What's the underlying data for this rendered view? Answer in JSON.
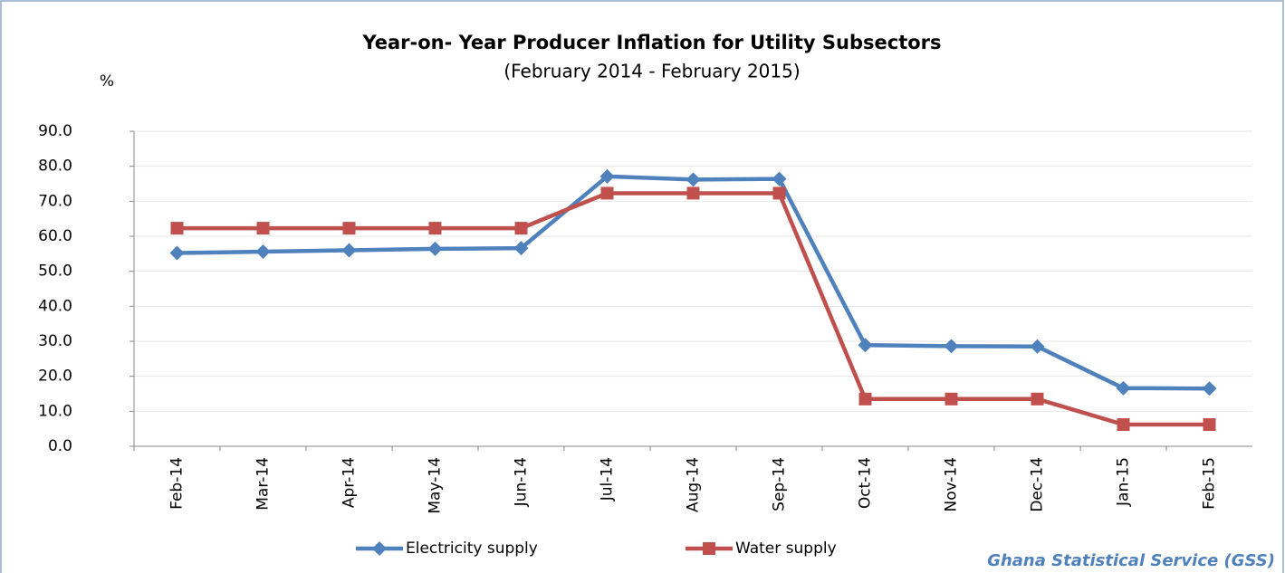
{
  "chart_data": {
    "type": "line",
    "title": "Year-on- Year Producer Inflation for Utility Subsectors",
    "subtitle": "(February 2014 - February 2015)",
    "y_label": "%",
    "source": "Ghana Statistical Service (GSS)",
    "categories": [
      "Feb-14",
      "Mar-14",
      "Apr-14",
      "May-14",
      "Jun-14",
      "Jul-14",
      "Aug-14",
      "Sep-14",
      "Oct-14",
      "Nov-14",
      "Dec-14",
      "Jan-15",
      "Feb-15"
    ],
    "series": [
      {
        "name": "Electricity supply",
        "color": "#4f81bd",
        "marker": "diamond",
        "values": [
          55.2,
          55.6,
          56.0,
          56.4,
          56.6,
          77.1,
          76.2,
          76.4,
          28.9,
          28.6,
          28.5,
          16.6,
          16.5
        ]
      },
      {
        "name": "Water supply",
        "color": "#c0504d",
        "marker": "square",
        "values": [
          62.3,
          62.3,
          62.3,
          62.3,
          62.3,
          72.3,
          72.3,
          72.3,
          13.5,
          13.5,
          13.5,
          6.2,
          6.2
        ]
      }
    ],
    "ylim": [
      0,
      90
    ],
    "yticks": [
      {
        "value": 0,
        "label": "0.0"
      },
      {
        "value": 10,
        "label": "10.0"
      },
      {
        "value": 20,
        "label": "20.0"
      },
      {
        "value": 30,
        "label": "30.0"
      },
      {
        "value": 40,
        "label": "40.0"
      },
      {
        "value": 50,
        "label": "50.0"
      },
      {
        "value": 60,
        "label": "60.0"
      },
      {
        "value": 70,
        "label": "70.0"
      },
      {
        "value": 80,
        "label": "80.0"
      },
      {
        "value": 90,
        "label": "90.0"
      }
    ],
    "grid": true,
    "legend": "bottom"
  }
}
